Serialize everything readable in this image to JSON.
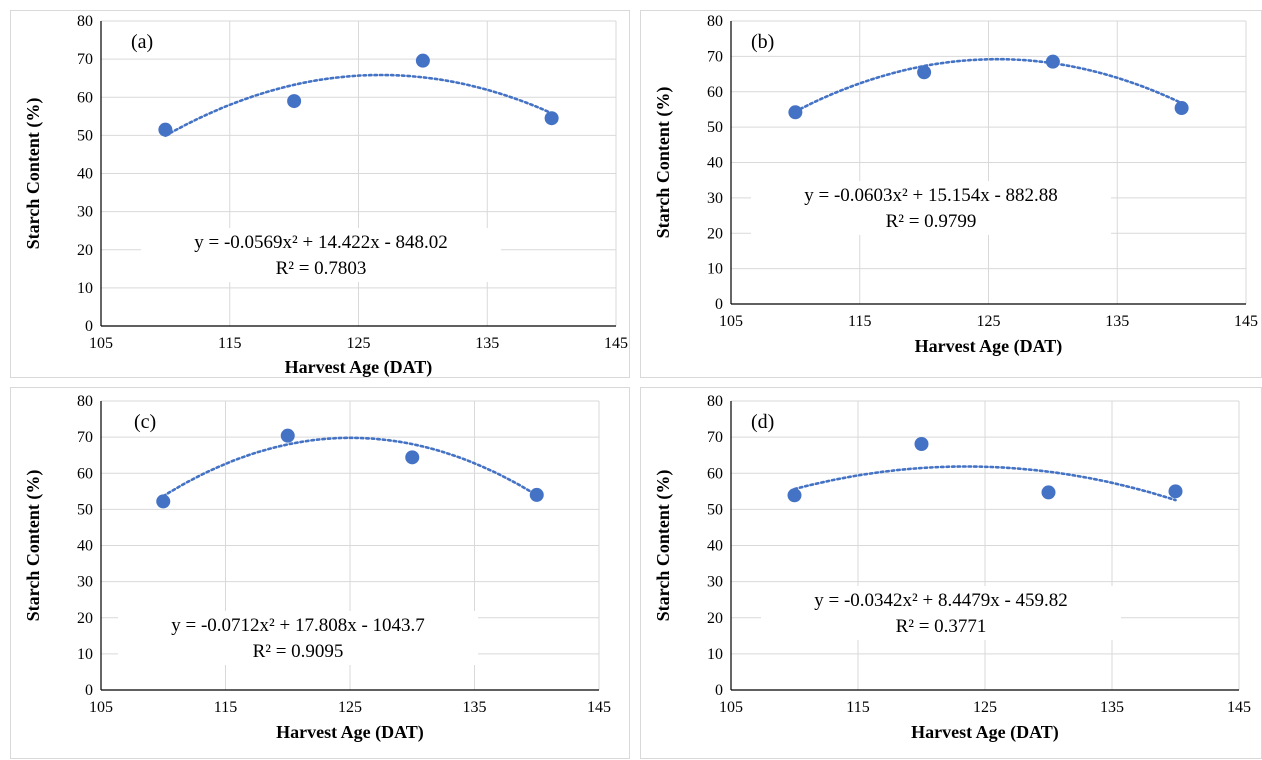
{
  "colors": {
    "marker": "#4472C4",
    "trendline": "#4472C4",
    "grid": "#d9d9d9"
  },
  "chart_data": [
    {
      "type": "scatter",
      "panel_label": "(a)",
      "xlabel": "Harvest Age (DAT)",
      "ylabel": "Starch Content (%)",
      "xlim": [
        105,
        145
      ],
      "ylim": [
        0,
        80
      ],
      "xticks": [
        "105",
        "115",
        "125",
        "135",
        "145"
      ],
      "yticks": [
        "0",
        "10",
        "20",
        "30",
        "40",
        "50",
        "60",
        "70",
        "80"
      ],
      "grid": true,
      "x": [
        110,
        120,
        130,
        140
      ],
      "y": [
        51.5,
        59,
        69.6,
        54.5
      ],
      "trendline": {
        "type": "polynomial",
        "order": 2,
        "a": -0.0569,
        "b": 14.422,
        "c": -848.02
      },
      "equation": "y = -0.0569x² + 14.422x - 848.02",
      "r2": "R² = 0.7803"
    },
    {
      "type": "scatter",
      "panel_label": "(b)",
      "xlabel": "Harvest Age (DAT)",
      "ylabel": "Starch Content (%)",
      "xlim": [
        105,
        145
      ],
      "ylim": [
        0,
        80
      ],
      "xticks": [
        "105",
        "115",
        "125",
        "135",
        "145"
      ],
      "yticks": [
        "0",
        "10",
        "20",
        "30",
        "40",
        "50",
        "60",
        "70",
        "80"
      ],
      "grid": true,
      "x": [
        110,
        120,
        130,
        140
      ],
      "y": [
        54.2,
        65.5,
        68.5,
        55.4
      ],
      "trendline": {
        "type": "polynomial",
        "order": 2,
        "a": -0.0603,
        "b": 15.154,
        "c": -882.88
      },
      "equation": "y = -0.0603x² + 15.154x - 882.88",
      "r2": "R² = 0.9799"
    },
    {
      "type": "scatter",
      "panel_label": "(c)",
      "xlabel": "Harvest Age (DAT)",
      "ylabel": "Starch Content (%)",
      "xlim": [
        105,
        145
      ],
      "ylim": [
        0,
        80
      ],
      "xticks": [
        "105",
        "115",
        "125",
        "135",
        "145"
      ],
      "yticks": [
        "0",
        "10",
        "20",
        "30",
        "40",
        "50",
        "60",
        "70",
        "80"
      ],
      "grid": true,
      "x": [
        110,
        120,
        130,
        140
      ],
      "y": [
        52.2,
        70.4,
        64.4,
        54
      ],
      "trendline": {
        "type": "polynomial",
        "order": 2,
        "a": -0.0712,
        "b": 17.808,
        "c": -1043.7
      },
      "equation": "y = -0.0712x² + 17.808x - 1043.7",
      "r2": "R² = 0.9095"
    },
    {
      "type": "scatter",
      "panel_label": "(d)",
      "xlabel": "Harvest Age (DAT)",
      "ylabel": "Starch Content (%)",
      "xlim": [
        105,
        145
      ],
      "ylim": [
        0,
        80
      ],
      "xticks": [
        "105",
        "115",
        "125",
        "135",
        "145"
      ],
      "yticks": [
        "0",
        "10",
        "20",
        "30",
        "40",
        "50",
        "60",
        "70",
        "80"
      ],
      "grid": true,
      "x": [
        110,
        120,
        130,
        140
      ],
      "y": [
        53.9,
        68.1,
        54.7,
        55
      ],
      "trendline": {
        "type": "polynomial",
        "order": 2,
        "a": -0.0342,
        "b": 8.4479,
        "c": -459.82
      },
      "equation": "y = -0.0342x² + 8.4479x - 459.82",
      "r2": "R² = 0.3771"
    }
  ]
}
